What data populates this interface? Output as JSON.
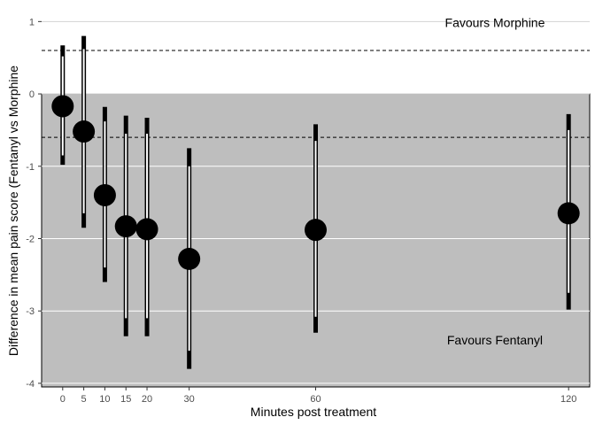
{
  "chart_data": {
    "type": "scatter",
    "title": "",
    "xlabel": "Minutes post treatment",
    "ylabel": "Difference in mean pain score (Fentanyl vs Morphine",
    "xlim": [
      -5,
      125
    ],
    "ylim": [
      -4.05,
      1.2
    ],
    "x_ticks": [
      0,
      5,
      10,
      15,
      20,
      30,
      60,
      120
    ],
    "y_ticks": [
      1,
      0,
      -1,
      -2,
      -3,
      -4
    ],
    "y_tick_labels": [
      "1",
      "0",
      "-1",
      "-2",
      "-3",
      "-4"
    ],
    "shaded_region": {
      "from": -4.05,
      "to": 0,
      "color": "#bebebe"
    },
    "reference_lines": [
      0.6,
      -0.6
    ],
    "annotations": [
      {
        "text": "Favours Morphine",
        "x": 100,
        "y": 1.18
      },
      {
        "text": "Favours Fentanyl",
        "x": 100,
        "y": -3.4
      }
    ],
    "points": [
      {
        "x": 0,
        "mean": -0.17,
        "ci_low": -0.98,
        "ci_high": 0.67,
        "inner_low": -0.85,
        "inner_high": 0.52
      },
      {
        "x": 5,
        "mean": -0.52,
        "ci_low": -1.85,
        "ci_high": 0.8,
        "inner_low": -1.65,
        "inner_high": 0.62
      },
      {
        "x": 10,
        "mean": -1.4,
        "ci_low": -2.6,
        "ci_high": -0.18,
        "inner_low": -2.4,
        "inner_high": -0.38
      },
      {
        "x": 15,
        "mean": -1.83,
        "ci_low": -3.35,
        "ci_high": -0.3,
        "inner_low": -3.1,
        "inner_high": -0.55
      },
      {
        "x": 20,
        "mean": -1.87,
        "ci_low": -3.35,
        "ci_high": -0.33,
        "inner_low": -3.1,
        "inner_high": -0.55
      },
      {
        "x": 30,
        "mean": -2.28,
        "ci_low": -3.8,
        "ci_high": -0.75,
        "inner_low": -3.55,
        "inner_high": -1.0
      },
      {
        "x": 60,
        "mean": -1.88,
        "ci_low": -3.3,
        "ci_high": -0.42,
        "inner_low": -3.08,
        "inner_high": -0.65
      },
      {
        "x": 120,
        "mean": -1.65,
        "ci_low": -2.98,
        "ci_high": -0.28,
        "inner_low": -2.75,
        "inner_high": -0.5
      }
    ]
  }
}
